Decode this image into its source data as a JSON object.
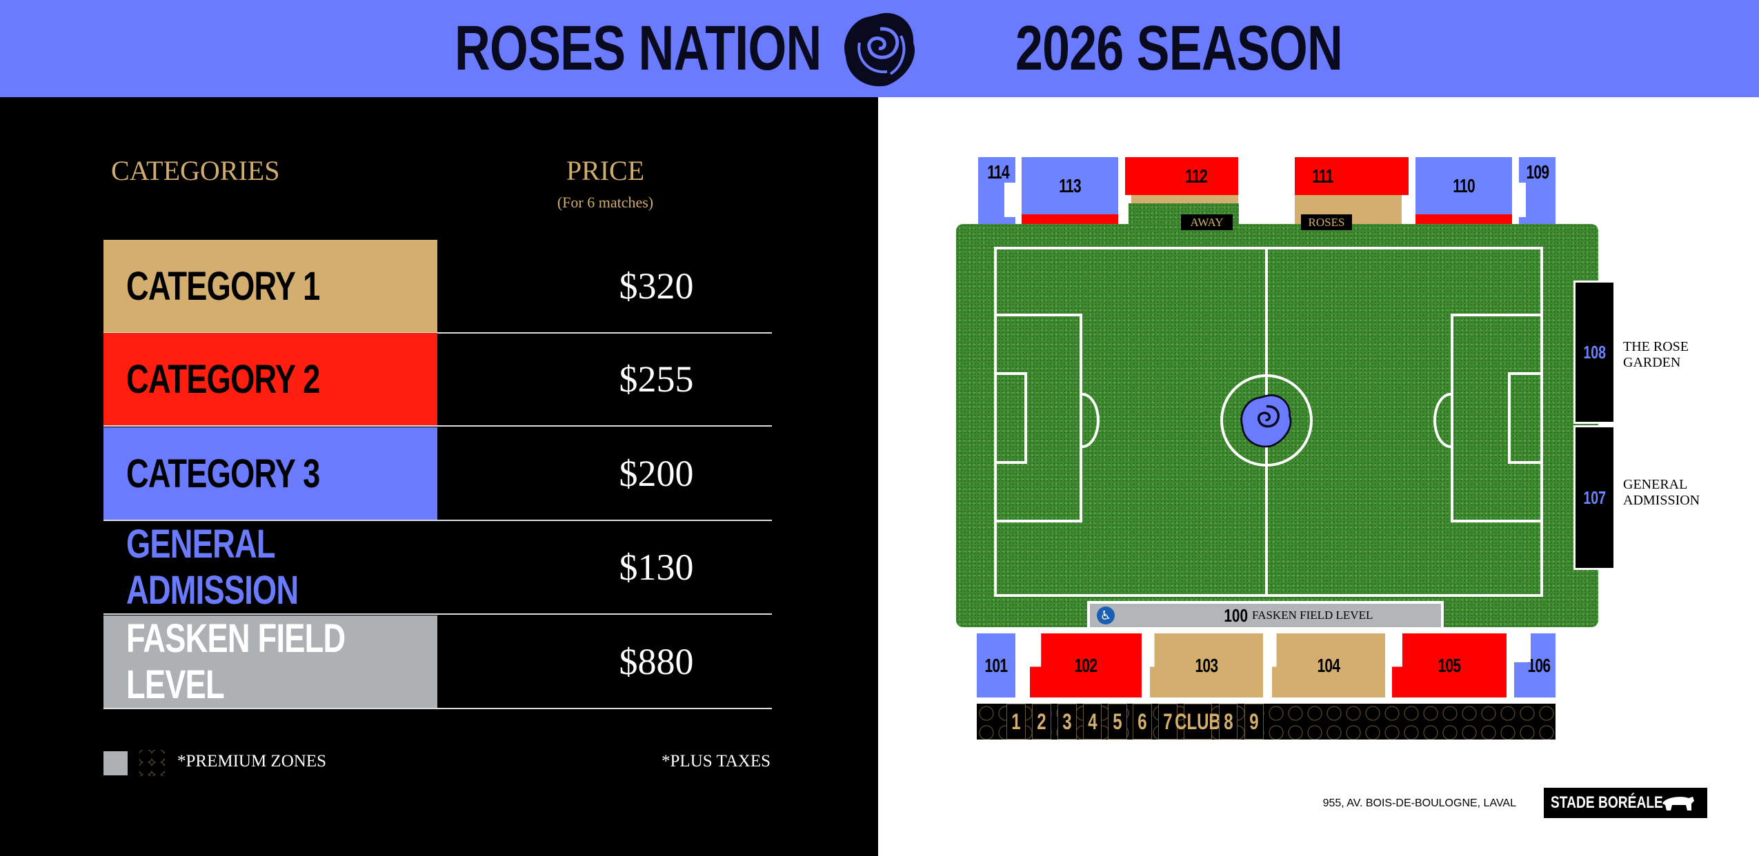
{
  "header": {
    "left_title": "ROSES NATION",
    "right_title": "2026 SEASON",
    "logo_icon": "rose-icon",
    "bg_color": "#6b7bff"
  },
  "pricing": {
    "categories_header": "CATEGORIES",
    "price_header": "PRICE",
    "price_subheader": "(For 6 matches)",
    "rows": [
      {
        "label": "CATEGORY 1",
        "price": "$320",
        "color": "#d3ae6f"
      },
      {
        "label": "CATEGORY 2",
        "price": "$255",
        "color": "#ff1e10"
      },
      {
        "label": "CATEGORY 3",
        "price": "$200",
        "color": "#6b7bff"
      },
      {
        "label": "GENERAL ADMISSION",
        "price": "$130",
        "color": "#6b7bff"
      },
      {
        "label": "FASKEN FIELD LEVEL",
        "price": "$880",
        "color": "#aeb1b3"
      }
    ],
    "premium_note": "*PREMIUM ZONES",
    "tax_note": "*PLUS TAXES"
  },
  "map": {
    "top_sections": [
      "114",
      "113",
      "112",
      "111",
      "110",
      "109"
    ],
    "bench_labels": {
      "away": "AWAY",
      "home": "ROSES"
    },
    "side_sections": [
      {
        "number": "108",
        "name": "THE ROSE GARDEN"
      },
      {
        "number": "107",
        "name": "GENERAL ADMISSION"
      }
    ],
    "field_level": {
      "number": "100",
      "name": "FASKEN FIELD LEVEL",
      "icon": "wheelchair-icon"
    },
    "bottom_sections": [
      "101",
      "102",
      "103",
      "104",
      "105",
      "106"
    ],
    "suites": [
      "1",
      "2",
      "3",
      "4",
      "5",
      "6",
      "7",
      "CLUB",
      "8",
      "9"
    ]
  },
  "footer": {
    "address": "955, AV. BOIS-DE-BOULOGNE, LAVAL",
    "venue_logo": "STADE BORÉALE"
  }
}
